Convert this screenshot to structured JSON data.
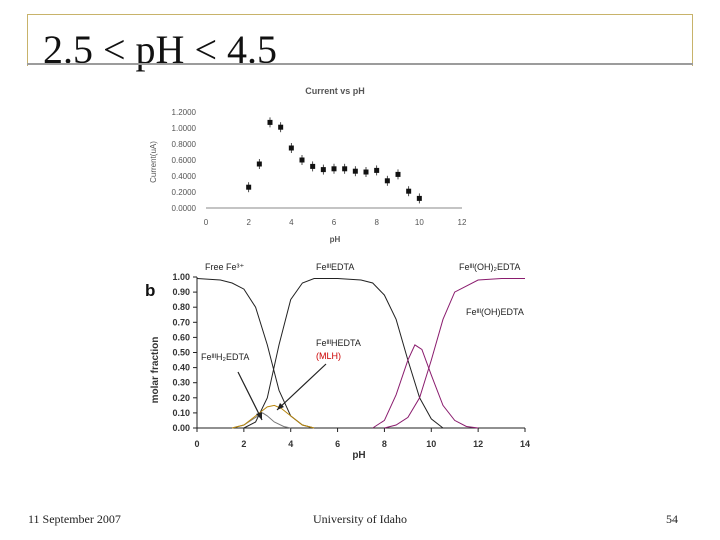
{
  "slide": {
    "title": "2.5 < pH < 4.5",
    "footer_date": "11 September 2007",
    "footer_org": "University of Idaho",
    "page_number": "54",
    "accent": "#c8b36a"
  },
  "chart_data": [
    {
      "type": "scatter",
      "title": "Current vs pH",
      "xlabel": "pH",
      "ylabel": "Current(uA)",
      "xlim": [
        0,
        12
      ],
      "ylim": [
        0,
        1.2
      ],
      "x_ticks": [
        "0",
        "2",
        "4",
        "6",
        "8",
        "10",
        "12"
      ],
      "y_ticks": [
        "0.0000",
        "0.2000",
        "0.4000",
        "0.6000",
        "0.8000",
        "1.0000",
        "1.2000"
      ],
      "x": [
        2.0,
        2.5,
        3.0,
        3.5,
        4.0,
        4.5,
        5.0,
        5.5,
        6.0,
        6.5,
        7.0,
        7.5,
        8.0,
        8.5,
        9.0,
        9.5,
        10.0
      ],
      "y": [
        0.26,
        0.55,
        1.07,
        1.01,
        0.75,
        0.6,
        0.52,
        0.48,
        0.49,
        0.49,
        0.46,
        0.45,
        0.47,
        0.34,
        0.42,
        0.21,
        0.12
      ],
      "error_bars": true
    },
    {
      "type": "line",
      "panel_label": "b",
      "xlabel": "pH",
      "ylabel": "molar fraction",
      "xlim": [
        0,
        14
      ],
      "ylim": [
        0,
        1
      ],
      "x_ticks": [
        "0",
        "2",
        "4",
        "6",
        "8",
        "10",
        "12",
        "14"
      ],
      "y_ticks": [
        "0.00",
        "0.10",
        "0.20",
        "0.30",
        "0.40",
        "0.50",
        "0.60",
        "0.70",
        "0.80",
        "0.90",
        "1.00"
      ],
      "series": [
        {
          "name": "Free Fe³⁺",
          "color": "#222222",
          "x": [
            0,
            1,
            1.5,
            2,
            2.5,
            3,
            3.5,
            4,
            4.5,
            5
          ],
          "y": [
            0.99,
            0.98,
            0.96,
            0.92,
            0.8,
            0.55,
            0.25,
            0.08,
            0.02,
            0.0
          ]
        },
        {
          "name": "FeᴵᴵᴵEDTA",
          "color": "#222222",
          "x": [
            2,
            2.5,
            3,
            3.5,
            4,
            4.5,
            5,
            6,
            7,
            7.5,
            8,
            8.5,
            9,
            9.5,
            10,
            10.5
          ],
          "y": [
            0.0,
            0.04,
            0.2,
            0.55,
            0.85,
            0.96,
            0.99,
            0.99,
            0.98,
            0.96,
            0.88,
            0.72,
            0.45,
            0.2,
            0.06,
            0.0
          ]
        },
        {
          "name": "Feᴵᴵᴵ(OH)₂EDTA",
          "color": "#8a1c6e",
          "x": [
            8,
            8.5,
            9,
            9.5,
            10,
            10.5,
            11,
            12,
            13,
            14
          ],
          "y": [
            0.0,
            0.02,
            0.07,
            0.2,
            0.45,
            0.72,
            0.9,
            0.98,
            0.99,
            0.99
          ]
        },
        {
          "name": "Feᴵᴵᴵ(OH)EDTA",
          "color": "#8a1c6e",
          "x": [
            7.5,
            8,
            8.5,
            9,
            9.3,
            9.6,
            10,
            10.5,
            11,
            11.5,
            12
          ],
          "y": [
            0.0,
            0.05,
            0.22,
            0.45,
            0.55,
            0.52,
            0.35,
            0.15,
            0.05,
            0.01,
            0.0
          ]
        },
        {
          "name": "FeᴵᴵᴵH₂EDTA",
          "color": "#7a7a7a",
          "x": [
            1.5,
            2,
            2.5,
            2.8,
            3,
            3.3,
            3.7,
            4
          ],
          "y": [
            0.0,
            0.02,
            0.07,
            0.1,
            0.08,
            0.04,
            0.01,
            0.0
          ]
        },
        {
          "name": "FeᴵᴵᴵHEDTA",
          "color": "#b8860b",
          "x": [
            1.5,
            2,
            2.5,
            3,
            3.3,
            3.6,
            4,
            4.5,
            5
          ],
          "y": [
            0.0,
            0.02,
            0.08,
            0.14,
            0.15,
            0.13,
            0.08,
            0.02,
            0.0
          ]
        }
      ],
      "annotations": [
        "Free Fe³⁺",
        "FeᴵᴵᴵEDTA",
        "Feᴵᴵᴵ(OH)₂EDTA",
        "Feᴵᴵᴵ(OH)EDTA",
        "FeᴵᴵᴵH₂EDTA",
        "FeᴵᴵᴵHEDTA",
        "(MLH)"
      ],
      "annotation_colors": {
        "default": "#222222",
        "mlh": "#cc0000"
      }
    }
  ]
}
